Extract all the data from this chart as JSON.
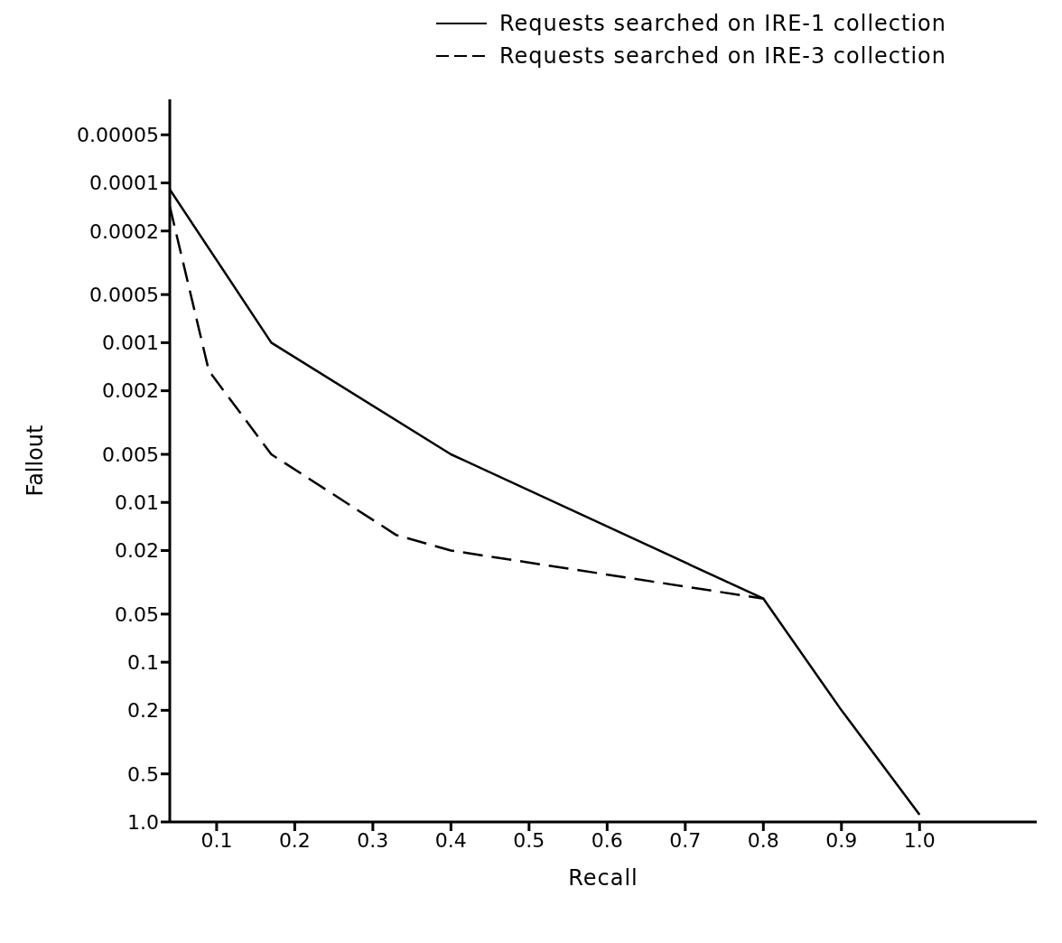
{
  "chart_data": {
    "type": "line",
    "xlabel": "Recall",
    "ylabel": "Fallout",
    "log": "y",
    "xlim": [
      0.04,
      1.15
    ],
    "xticks": [
      0.1,
      0.2,
      0.3,
      0.4,
      0.5,
      0.6,
      0.7,
      0.8,
      0.9,
      {
        "value": 1,
        "label": "1.0"
      }
    ],
    "ylim": [
      1,
      3e-05
    ],
    "yticks": [
      {
        "value": 5e-05,
        "label": "0.00005"
      },
      0.0001,
      0.0002,
      0.0005,
      0.001,
      0.002,
      0.005,
      0.01,
      0.02,
      0.05,
      0.1,
      0.2,
      0.5,
      {
        "value": 1,
        "label": "1.0"
      }
    ],
    "grid": false,
    "legend": "top",
    "marker": "none",
    "series": [
      {
        "name": "Requests searched on IRE-1 collection",
        "color": "#000000",
        "line_style": "solid",
        "x": [
          0.04,
          0.17,
          0.4,
          0.8,
          0.9,
          1.0
        ],
        "values": [
          0.00011,
          0.001,
          0.005,
          0.04,
          0.2,
          0.9
        ]
      },
      {
        "name": "Requests searched on IRE-3 collection",
        "color": "#000000",
        "line_style": "dashed",
        "x": [
          0.04,
          0.09,
          0.17,
          0.33,
          0.4,
          0.8
        ],
        "values": [
          0.00014,
          0.0015,
          0.005,
          0.016,
          0.02,
          0.04
        ]
      }
    ]
  }
}
